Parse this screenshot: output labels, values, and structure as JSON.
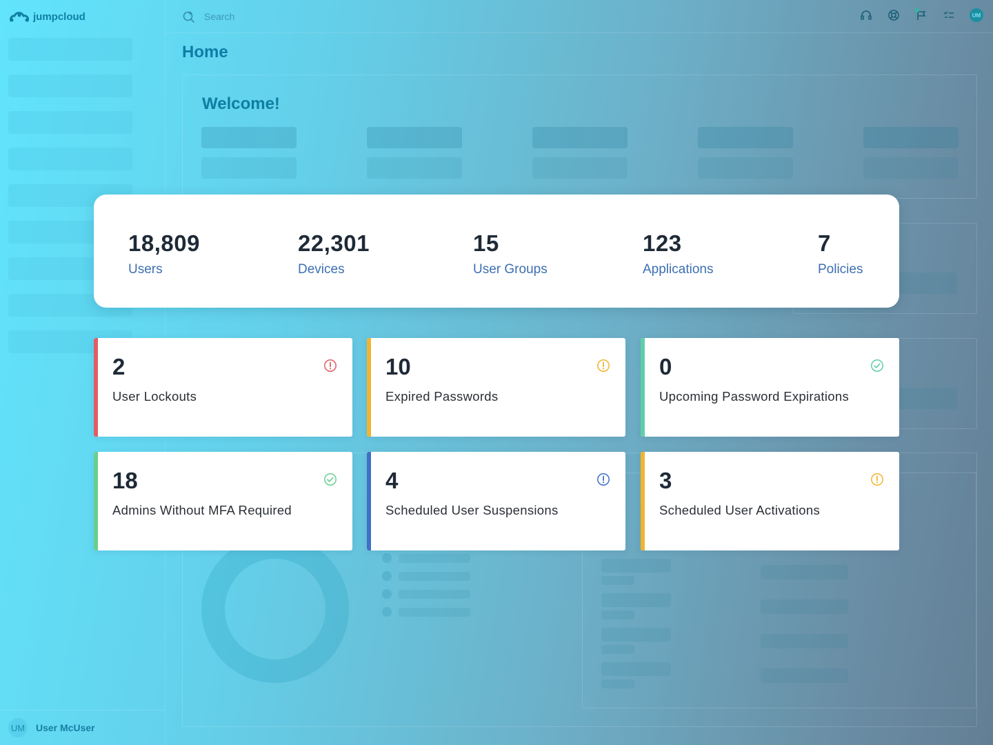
{
  "app": {
    "brand": "jumpcloud",
    "page_title": "Home",
    "welcome": "Welcome!"
  },
  "topbar": {
    "search_placeholder": "Search",
    "icons": [
      "headset-icon",
      "help-wheel-icon",
      "flag-icon",
      "checklist-icon"
    ],
    "avatar_initials": "UM"
  },
  "sidebar": {
    "user_initials": "UM",
    "user_name": "User McUser"
  },
  "stats": [
    {
      "value": "18,809",
      "label": "Users"
    },
    {
      "value": "22,301",
      "label": "Devices"
    },
    {
      "value": "15",
      "label": "User Groups"
    },
    {
      "value": "123",
      "label": "Applications"
    },
    {
      "value": "7",
      "label": "Policies"
    }
  ],
  "alerts": [
    {
      "value": "2",
      "label": "User Lockouts",
      "status": "error",
      "color": "#e25c62",
      "icon": "alert-circle-icon"
    },
    {
      "value": "10",
      "label": "Expired Passwords",
      "status": "warning",
      "color": "#f2b430",
      "icon": "alert-circle-icon"
    },
    {
      "value": "0",
      "label": "Upcoming Password Expirations",
      "status": "success",
      "color": "#5ecfa6",
      "icon": "check-circle-icon"
    },
    {
      "value": "18",
      "label": "Admins Without MFA Required",
      "status": "success",
      "color": "#66d08e",
      "icon": "check-circle-icon"
    },
    {
      "value": "4",
      "label": "Scheduled User Suspensions",
      "status": "info",
      "color": "#3f6fc9",
      "icon": "info-circle-icon"
    },
    {
      "value": "3",
      "label": "Scheduled User Activations",
      "status": "warning",
      "color": "#f2b430",
      "icon": "alert-circle-icon"
    }
  ]
}
